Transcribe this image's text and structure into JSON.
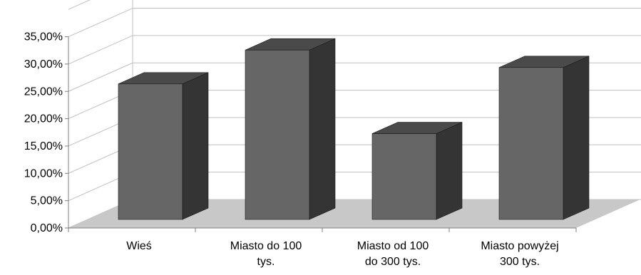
{
  "chart_data": {
    "type": "bar",
    "categories": [
      [
        "Wieś"
      ],
      [
        "Miasto do 100",
        "tys."
      ],
      [
        "Miasto od 100",
        "do 300 tys."
      ],
      [
        "Miasto powyżej",
        "300 tys."
      ]
    ],
    "values": [
      24.8,
      31.0,
      15.7,
      27.8
    ],
    "yticks": [
      "0,00%",
      "5,00%",
      "10,00%",
      "15,00%",
      "20,00%",
      "25,00%",
      "30,00%",
      "35,00%"
    ],
    "ylim": [
      0,
      40
    ],
    "grid": true,
    "legend": "none",
    "three_d": true,
    "colors": {
      "bar_front": "#666666",
      "bar_side": "#343434",
      "bar_top": "#4a4a4a",
      "floor": "#c8c8c8",
      "grid": "#c0c0c0",
      "axis": "#808080"
    }
  }
}
